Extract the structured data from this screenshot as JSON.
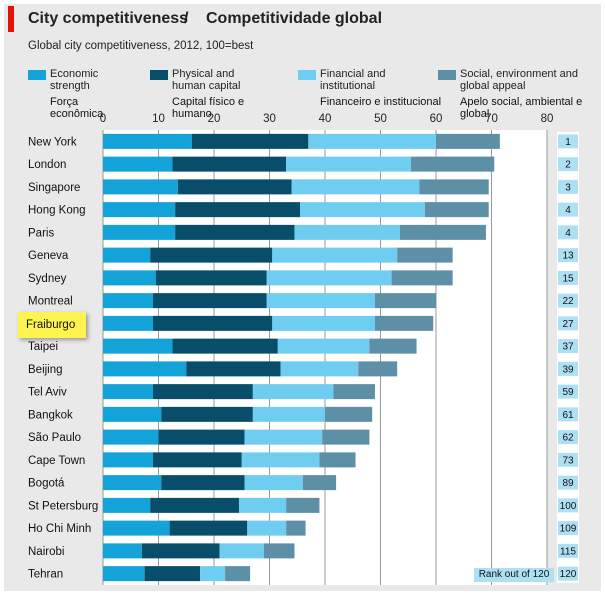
{
  "header": {
    "title_en": "City competitiveness",
    "separator": "/",
    "title_pt": "Competitividade global",
    "subtitle": "Global city competitiveness, 2012, 100=best"
  },
  "legend": [
    {
      "en": "Economic\nstrength",
      "pt": "Força\neconômica",
      "color": "#14a3d9"
    },
    {
      "en": "Physical and\nhuman capital",
      "pt": "Capital físico e\nhumano",
      "color": "#084e6a"
    },
    {
      "en": "Financial and\ninstitutional",
      "pt": "Financeiro e institucional",
      "color": "#6fcdf2"
    },
    {
      "en": "Social, environment and\nglobal appeal",
      "pt": "Apelo social, ambiental e\nglobal",
      "color": "#5d90a6"
    }
  ],
  "highlight_label": "Fraiburgo",
  "rank_caption": "Rank out of 120",
  "chart_data": {
    "type": "bar",
    "orientation": "horizontal",
    "stacked": true,
    "categories": [
      "New York",
      "London",
      "Singapore",
      "Hong Kong",
      "Paris",
      "Geneva",
      "Sydney",
      "Montreal",
      "Fraiburgo",
      "Taipei",
      "Beijing",
      "Tel Aviv",
      "Bangkok",
      "São Paulo",
      "Cape Town",
      "Bogotá",
      "St Petersburg",
      "Ho Chi Minh",
      "Nairobi",
      "Tehran"
    ],
    "ranks": [
      "1",
      "2",
      "3",
      "4",
      "4",
      "13",
      "15",
      "22",
      "27",
      "37",
      "39",
      "59",
      "61",
      "62",
      "73",
      "89",
      "100",
      "109",
      "115",
      "120"
    ],
    "series": [
      {
        "name": "Economic strength",
        "color": "#14a3d9",
        "values": [
          16,
          12.5,
          13.5,
          13,
          13,
          8.5,
          9.5,
          9,
          9,
          12.5,
          15,
          9,
          10.5,
          10,
          9,
          10.5,
          8.5,
          12,
          7,
          7.5
        ]
      },
      {
        "name": "Physical and human capital",
        "color": "#084e6a",
        "values": [
          21,
          20.5,
          20.5,
          22.5,
          21.5,
          22,
          20,
          20.5,
          21.5,
          19,
          17,
          18,
          16.5,
          15.5,
          16,
          15,
          16,
          14,
          14,
          10
        ]
      },
      {
        "name": "Financial and institutional",
        "color": "#6fcdf2",
        "values": [
          23,
          22.5,
          23,
          22.5,
          19,
          22.5,
          22.5,
          19.5,
          18.5,
          16.5,
          14,
          14.5,
          13,
          14,
          14,
          10.5,
          8.5,
          7,
          8,
          4.5
        ]
      },
      {
        "name": "Social, environment and global appeal",
        "color": "#5d90a6",
        "values": [
          11.5,
          15,
          12.5,
          11.5,
          15.5,
          10,
          11,
          11,
          10.5,
          8.5,
          7,
          7.5,
          8.5,
          8.5,
          6.5,
          6,
          6,
          3.5,
          5.5,
          4.5
        ]
      }
    ],
    "xticks": [
      "0",
      "10",
      "20",
      "30",
      "40",
      "50",
      "60",
      "70",
      "80"
    ],
    "xlim": [
      0,
      80
    ],
    "grid": true
  }
}
